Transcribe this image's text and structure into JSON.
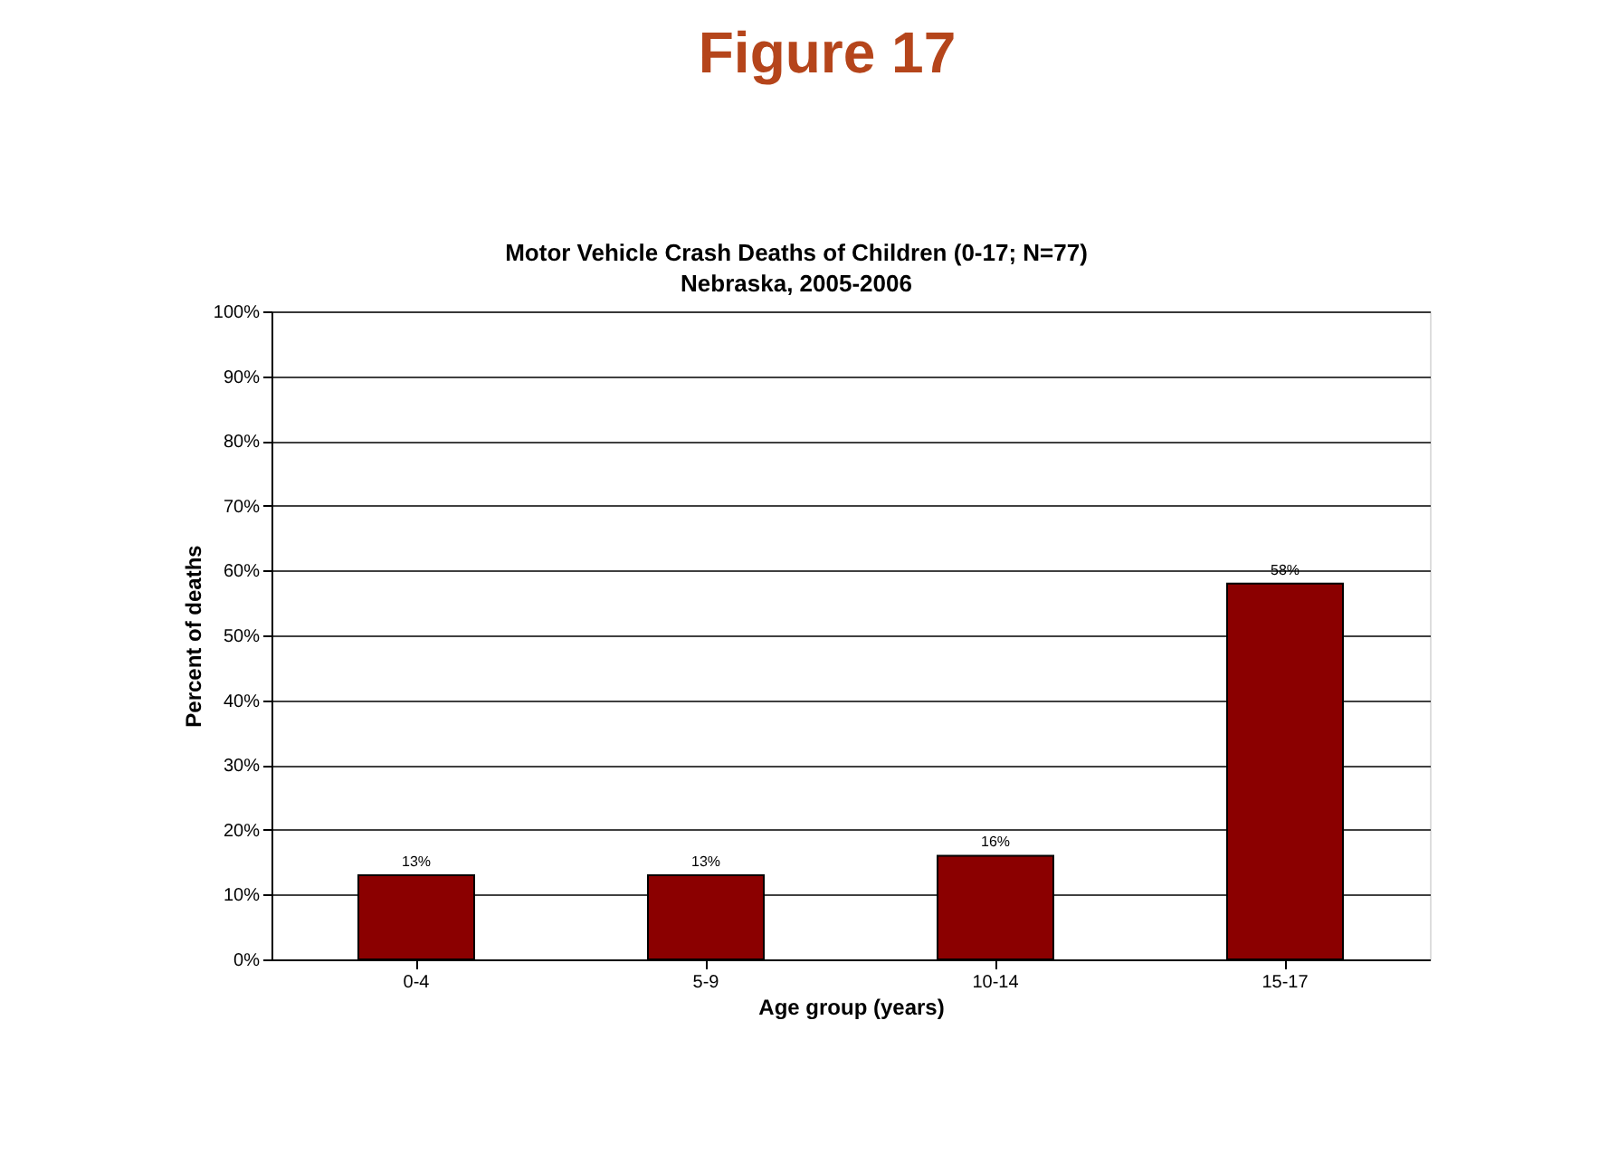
{
  "chart_data": {
    "type": "bar",
    "title": "Motor Vehicle Crash Deaths of Children (0-17; N=77)\nNebraska, 2005-2006",
    "annotations": [
      "Figure 17"
    ],
    "xlabel": "Age group (years)",
    "ylabel": "Percent of deaths",
    "categories": [
      "0-4",
      "5-9",
      "10-14",
      "15-17"
    ],
    "values": [
      13,
      13,
      16,
      58
    ],
    "value_labels": [
      "13%",
      "13%",
      "16%",
      "58%"
    ],
    "color": "#8b0000",
    "ylim": [
      0,
      100
    ],
    "yticks": [
      {
        "value": 0,
        "label": "0%"
      },
      {
        "value": 10,
        "label": "10%"
      },
      {
        "value": 20,
        "label": "20%"
      },
      {
        "value": 30,
        "label": "30%"
      },
      {
        "value": 40,
        "label": "40%"
      },
      {
        "value": 50,
        "label": "50%"
      },
      {
        "value": 60,
        "label": "60%"
      },
      {
        "value": 70,
        "label": "70%"
      },
      {
        "value": 80,
        "label": "80%"
      },
      {
        "value": 90,
        "label": "90%"
      },
      {
        "value": 100,
        "label": "100%"
      }
    ],
    "grid": "y"
  }
}
